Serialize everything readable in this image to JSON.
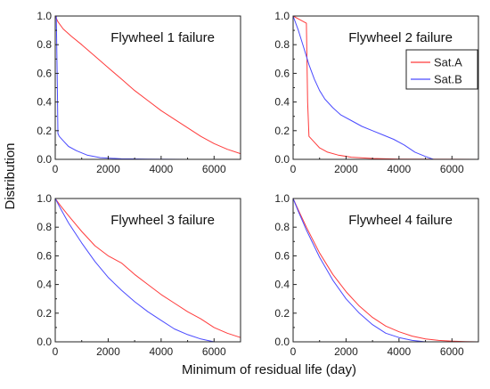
{
  "figure": {
    "xlabel": "Minimum of residual life (day)",
    "ylabel": "Distribution"
  },
  "chart_data": [
    {
      "type": "line",
      "title": "Flywheel 1 failure",
      "xlim": [
        0,
        7000
      ],
      "ylim": [
        0,
        1.0
      ],
      "xticks": [
        0,
        2000,
        4000,
        6000
      ],
      "yticks": [
        0.0,
        0.2,
        0.4,
        0.6,
        0.8,
        1.0
      ],
      "series": [
        {
          "name": "Sat.A",
          "color": "#ff3b3b",
          "x": [
            0,
            100,
            300,
            600,
            1000,
            1500,
            2000,
            2500,
            3000,
            3500,
            4000,
            4500,
            5000,
            5500,
            6000,
            6500,
            7000
          ],
          "y": [
            1.0,
            0.96,
            0.91,
            0.86,
            0.8,
            0.72,
            0.64,
            0.56,
            0.48,
            0.41,
            0.34,
            0.28,
            0.22,
            0.16,
            0.11,
            0.07,
            0.04
          ]
        },
        {
          "name": "Sat.B",
          "color": "#4a4aff",
          "x": [
            0,
            40,
            80,
            100,
            150,
            300,
            500,
            800,
            1200,
            1700,
            2500,
            3500,
            5000,
            7000
          ],
          "y": [
            1.0,
            1.0,
            0.5,
            0.18,
            0.16,
            0.13,
            0.09,
            0.06,
            0.03,
            0.012,
            0.004,
            0.001,
            0.0,
            0.0
          ]
        }
      ]
    },
    {
      "type": "line",
      "title": "Flywheel 2 failure",
      "xlim": [
        0,
        7000
      ],
      "ylim": [
        0,
        1.0
      ],
      "xticks": [
        0,
        2000,
        4000,
        6000
      ],
      "yticks": [
        0.0,
        0.2,
        0.4,
        0.6,
        0.8,
        1.0
      ],
      "series": [
        {
          "name": "Sat.A",
          "color": "#ff3b3b",
          "x": [
            0,
            200,
            400,
            500,
            550,
            600,
            800,
            1000,
            1300,
            1700,
            2200,
            3000,
            4000,
            7000
          ],
          "y": [
            1.0,
            0.98,
            0.96,
            0.95,
            0.4,
            0.16,
            0.12,
            0.08,
            0.05,
            0.03,
            0.015,
            0.006,
            0.002,
            0.0
          ]
        },
        {
          "name": "Sat.B",
          "color": "#4a4aff",
          "x": [
            0,
            200,
            400,
            600,
            800,
            1000,
            1200,
            1500,
            1800,
            2200,
            2600,
            3000,
            3400,
            3800,
            4200,
            4600,
            5000,
            5300,
            7000
          ],
          "y": [
            1.0,
            0.9,
            0.78,
            0.66,
            0.56,
            0.48,
            0.42,
            0.36,
            0.31,
            0.27,
            0.23,
            0.2,
            0.17,
            0.14,
            0.1,
            0.05,
            0.02,
            0.0,
            0.0
          ]
        }
      ]
    },
    {
      "type": "line",
      "title": "Flywheel 3 failure",
      "xlim": [
        0,
        7000
      ],
      "ylim": [
        0,
        1.0
      ],
      "xticks": [
        0,
        2000,
        4000,
        6000
      ],
      "yticks": [
        0.0,
        0.2,
        0.4,
        0.6,
        0.8,
        1.0
      ],
      "series": [
        {
          "name": "Sat.A",
          "color": "#ff3b3b",
          "x": [
            0,
            200,
            500,
            1000,
            1500,
            2000,
            2500,
            3000,
            3500,
            4000,
            4500,
            5000,
            5500,
            6000,
            6500,
            7000
          ],
          "y": [
            1.0,
            0.95,
            0.88,
            0.77,
            0.67,
            0.6,
            0.55,
            0.47,
            0.4,
            0.33,
            0.27,
            0.21,
            0.16,
            0.1,
            0.06,
            0.03
          ]
        },
        {
          "name": "Sat.B",
          "color": "#4a4aff",
          "x": [
            0,
            200,
            500,
            1000,
            1500,
            2000,
            2500,
            3000,
            3500,
            4000,
            4500,
            5000,
            5500,
            6000,
            7000
          ],
          "y": [
            1.0,
            0.93,
            0.83,
            0.69,
            0.56,
            0.45,
            0.36,
            0.28,
            0.21,
            0.15,
            0.09,
            0.05,
            0.02,
            0.0,
            0.0
          ]
        }
      ]
    },
    {
      "type": "line",
      "title": "Flywheel 4 failure",
      "xlim": [
        0,
        7000
      ],
      "ylim": [
        0,
        1.0
      ],
      "xticks": [
        0,
        2000,
        4000,
        6000
      ],
      "yticks": [
        0.0,
        0.2,
        0.4,
        0.6,
        0.8,
        1.0
      ],
      "series": [
        {
          "name": "Sat.A",
          "color": "#ff3b3b",
          "x": [
            0,
            200,
            500,
            1000,
            1500,
            2000,
            2500,
            3000,
            3500,
            4000,
            4500,
            5000,
            5500,
            6000,
            6500,
            7000
          ],
          "y": [
            1.0,
            0.92,
            0.8,
            0.62,
            0.47,
            0.35,
            0.25,
            0.17,
            0.11,
            0.07,
            0.04,
            0.02,
            0.01,
            0.005,
            0.002,
            0.0
          ]
        },
        {
          "name": "Sat.B",
          "color": "#4a4aff",
          "x": [
            0,
            200,
            500,
            1000,
            1500,
            2000,
            2500,
            3000,
            3500,
            4000,
            4500,
            5000,
            7000
          ],
          "y": [
            1.0,
            0.91,
            0.78,
            0.59,
            0.43,
            0.3,
            0.2,
            0.12,
            0.06,
            0.03,
            0.01,
            0.0,
            0.0
          ]
        }
      ]
    }
  ],
  "legend": {
    "panel": 1,
    "placement": "right",
    "entries": [
      {
        "label": "Sat.A",
        "color": "#ff3b3b"
      },
      {
        "label": "Sat.B",
        "color": "#4a4aff"
      }
    ]
  }
}
